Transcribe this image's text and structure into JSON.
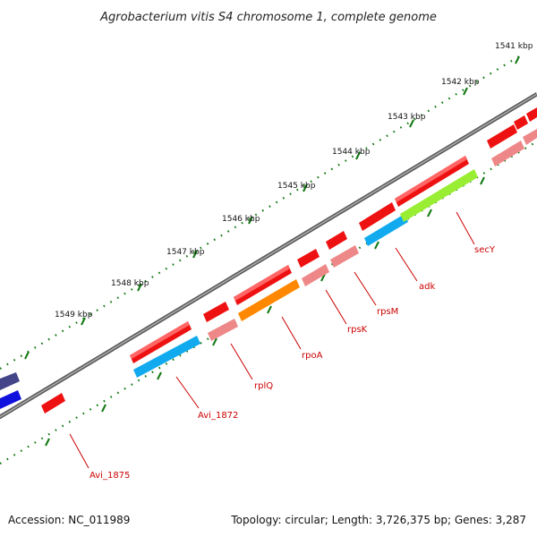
{
  "title": "Agrobacterium vitis S4 chromosome 1, complete genome",
  "footer": {
    "accession": "Accession: NC_011989",
    "summary": "Topology: circular; Length: 3,726,375 bp; Genes: 3,287"
  },
  "ruler": {
    "labels": [
      "1541 kbp",
      "1542 kbp",
      "1543 kbp",
      "1544 kbp",
      "1545 kbp",
      "1546 kbp",
      "1547 kbp",
      "1548 kbp",
      "1549 kbp"
    ]
  },
  "genes": [
    {
      "name": "Avi_1875"
    },
    {
      "name": "Avi_1872"
    },
    {
      "name": "rplQ"
    },
    {
      "name": "rpoA"
    },
    {
      "name": "rpsK"
    },
    {
      "name": "rpsM"
    },
    {
      "name": "adk"
    },
    {
      "name": "secY"
    }
  ],
  "colors": {
    "gene_red": "#ee1111",
    "gene_pink": "#ee8888",
    "gene_cyan": "#11aaee",
    "gene_orange": "#ff8800",
    "gene_green": "#99ee33",
    "gene_blue": "#1111dd",
    "gene_navy": "#444488",
    "backbone": "#888888",
    "ruler": "#117711",
    "label": "#cc0000"
  }
}
